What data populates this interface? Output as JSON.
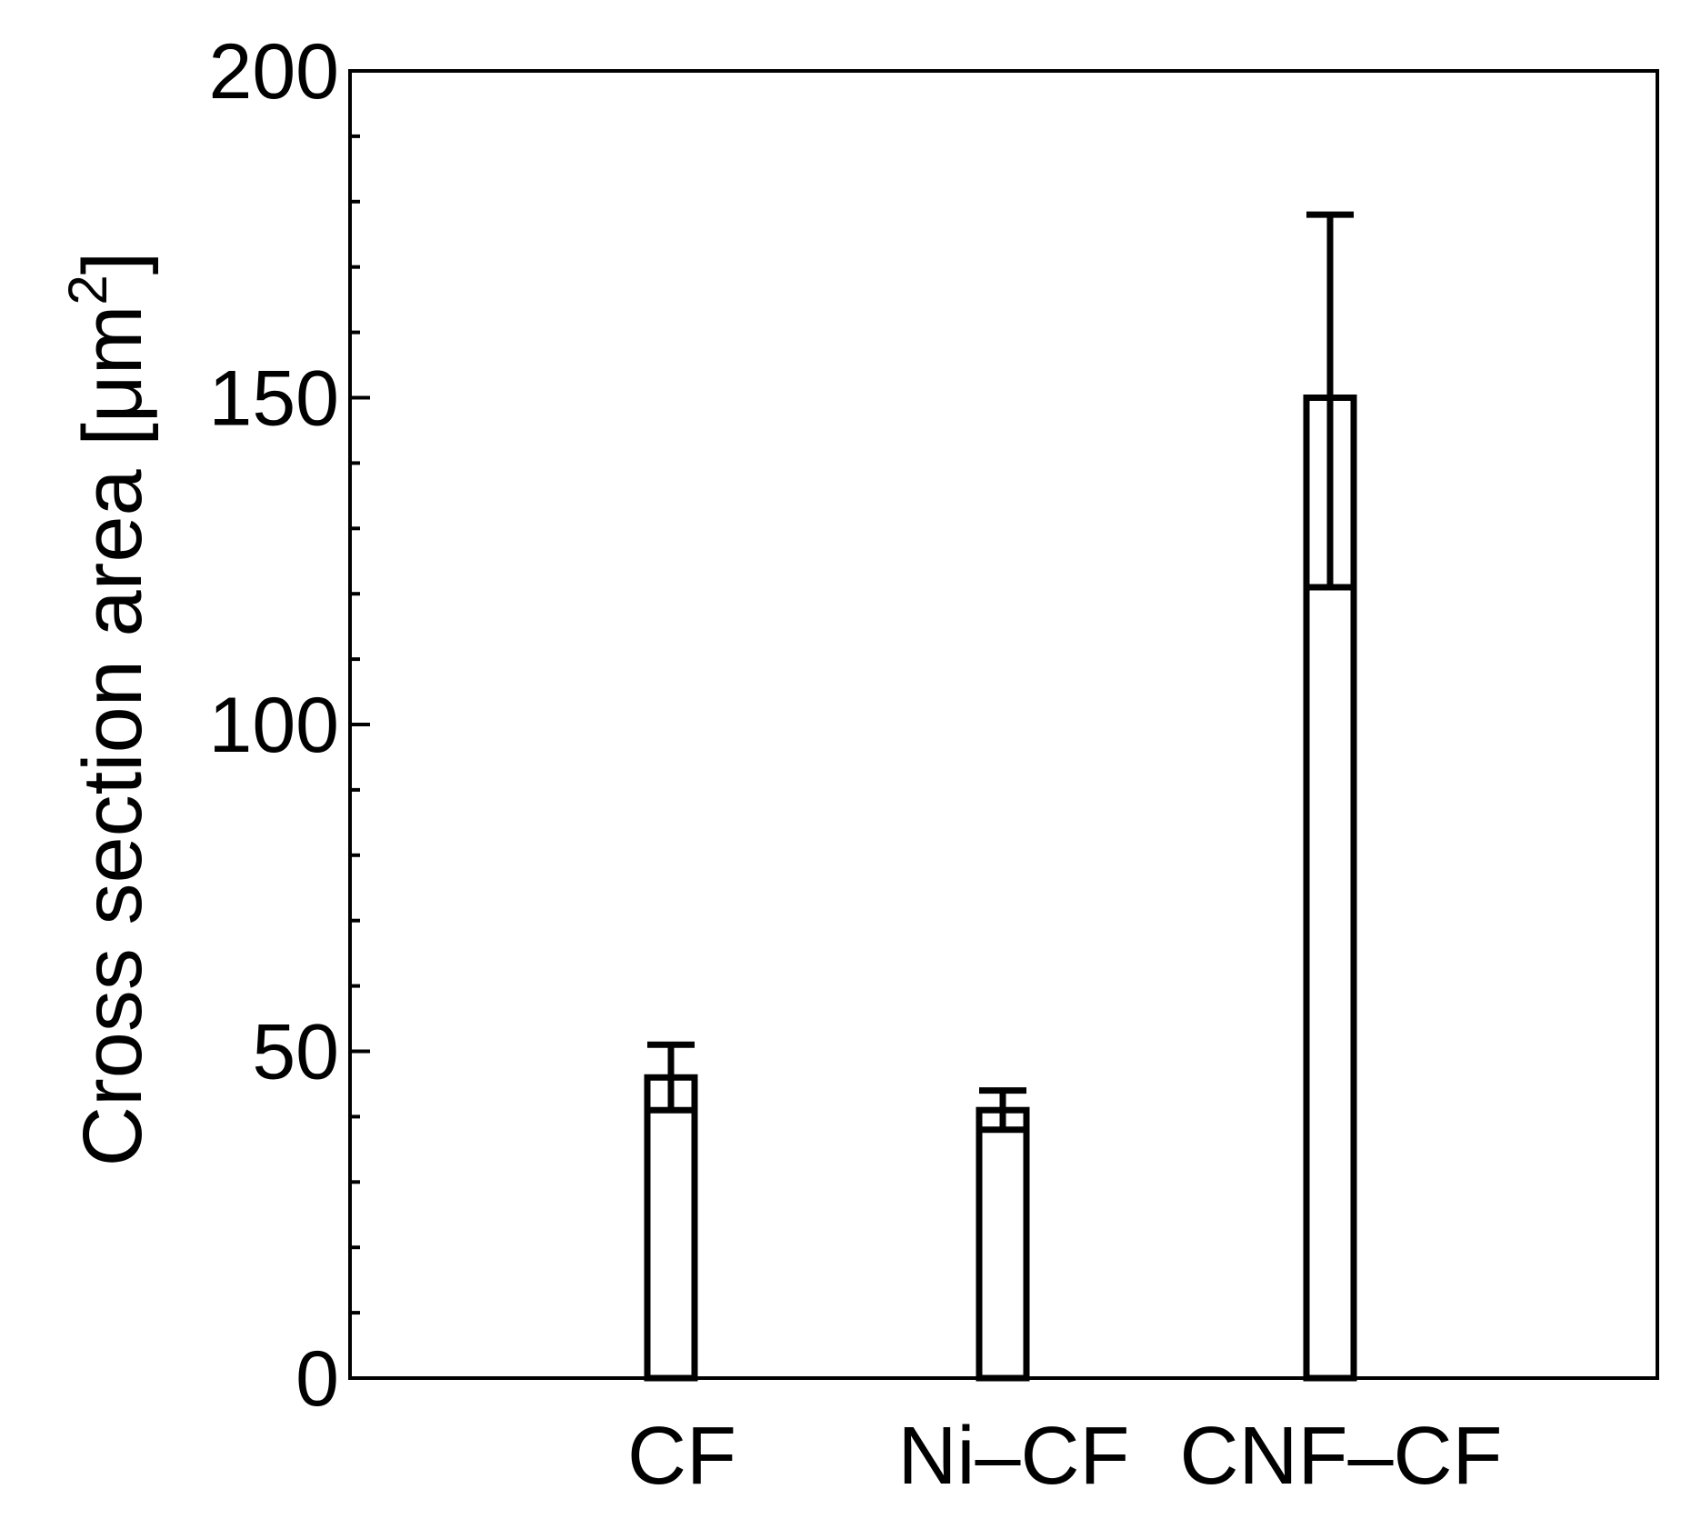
{
  "chart_data": {
    "type": "bar",
    "categories": [
      "CF",
      "Ni–CF",
      "CNF–CF"
    ],
    "values": [
      46,
      41,
      150
    ],
    "error_upper": [
      51,
      44,
      178
    ],
    "error_lower": [
      41,
      38,
      121
    ],
    "ylabel_text": "Cross section area [μm",
    "ylabel_superscript": "2",
    "ylabel_close": "]",
    "ylim": [
      0,
      200
    ],
    "y_major_ticks": [
      0,
      50,
      100,
      150,
      200
    ],
    "y_minor_step": 10,
    "bar_fill": "#ffffff",
    "bar_stroke": "#000000",
    "grid": false,
    "legend": false
  }
}
